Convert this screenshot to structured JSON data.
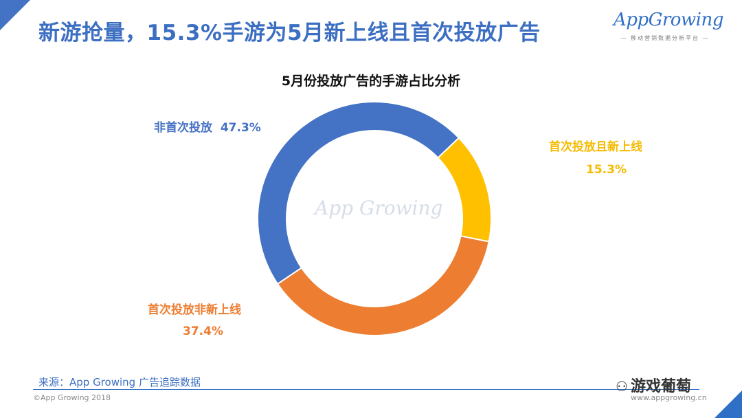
{
  "page": {
    "title": "新游抢量，15.3%手游为5月新上线且首次投放广告",
    "logo_text": "AppGrowing",
    "logo_tagline": "— 移动营销数据分析平台 —",
    "watermark": "App Growing",
    "source": "来源：App Growing 广告追踪数据",
    "copyright": "©App Growing 2018",
    "site": "www.appgrowing.cn",
    "wechat": "游戏葡萄",
    "wechat_icon": "wechat-icon"
  },
  "colors": {
    "blue": "#4472c4",
    "yellow": "#ffc000",
    "orange": "#ed7d31",
    "title_blue": "#3c6fc2"
  },
  "chart_data": {
    "type": "pie",
    "title": "5月份投放广告的手游占比分析",
    "donut": true,
    "slices": [
      {
        "label": "非首次投放",
        "value": 47.3,
        "display": "47.3%",
        "color": "#4472c4"
      },
      {
        "label": "首次投放且新上线",
        "value": 15.3,
        "display": "15.3%",
        "color": "#ffc000"
      },
      {
        "label": "首次投放非新上线",
        "value": 37.4,
        "display": "37.4%",
        "color": "#ed7d31"
      }
    ]
  }
}
